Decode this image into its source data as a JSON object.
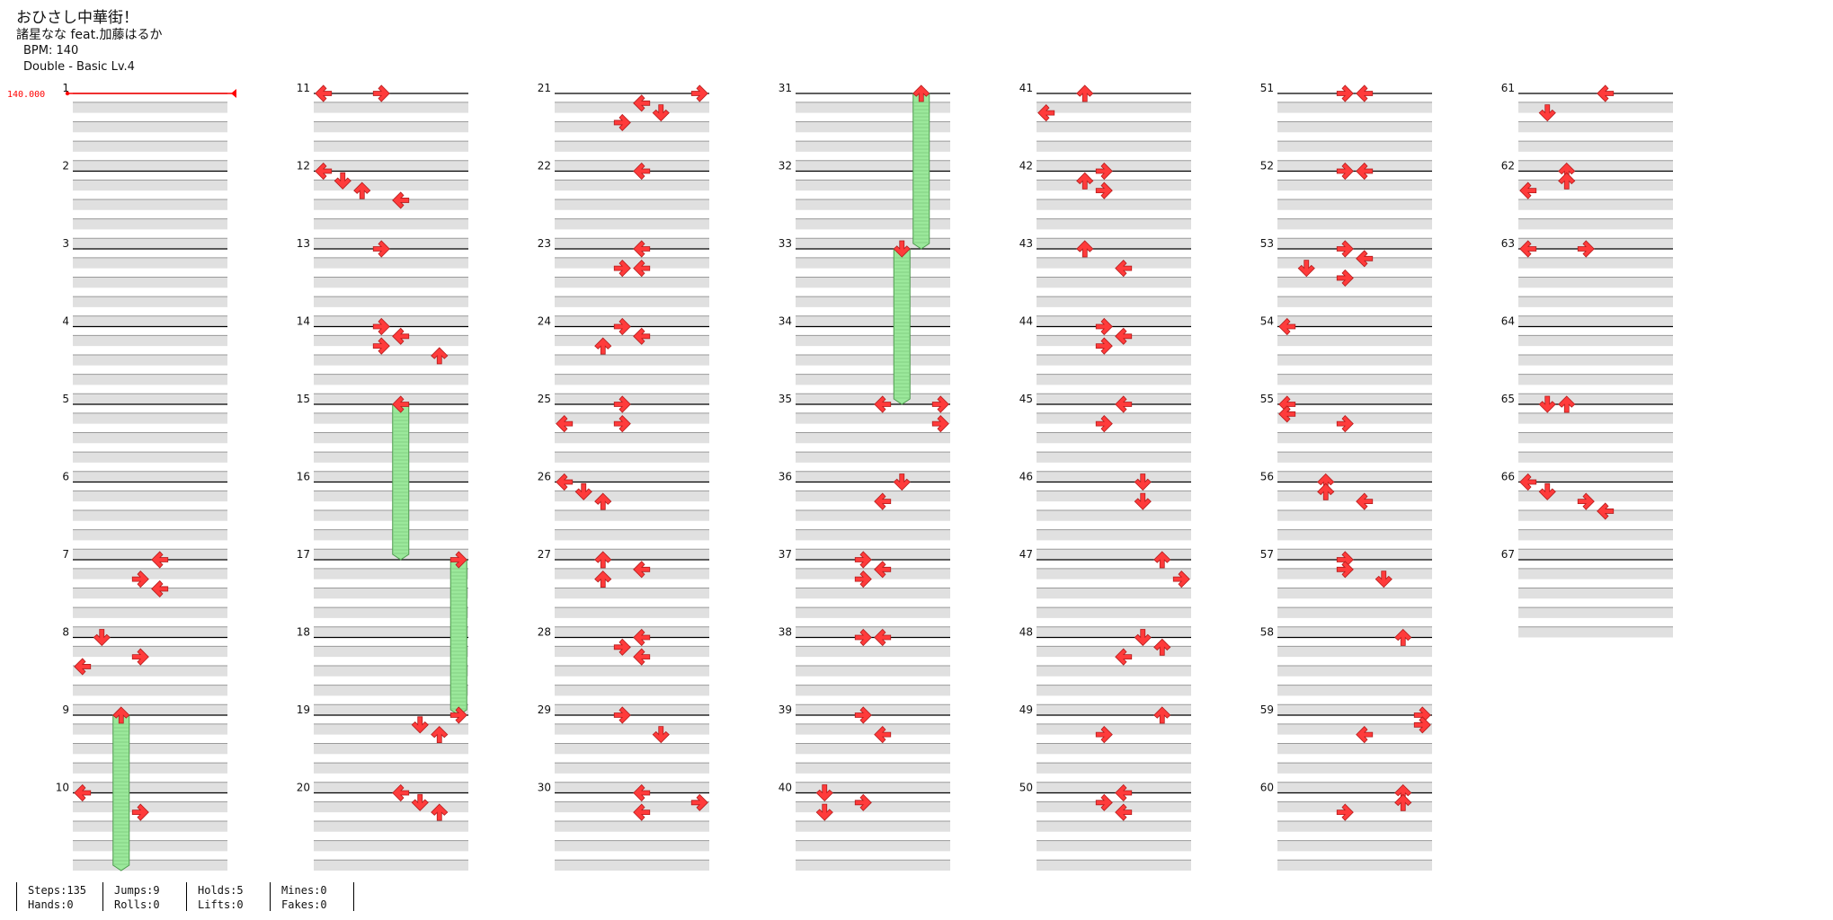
{
  "song": {
    "title": "おひさし中華街！",
    "artist": "諸星なな feat.加藤はるか",
    "bpm_text": "BPM: 140",
    "chart_text": "Double - Basic Lv.4",
    "bpm_marker": "140.000"
  },
  "colors": {
    "arrow": "#ff3b3b",
    "arrow_outline": "#b31b1b",
    "hold": "#9be89b",
    "hold_outline": "#4c9a4c",
    "band": "#e0e0e0",
    "bpm": "#ff0000"
  },
  "stats": [
    {
      "label1": "Steps:",
      "value1": "135",
      "label2": "Hands:",
      "value2": "0"
    },
    {
      "label1": "Jumps:",
      "value1": "9",
      "label2": "Rolls:",
      "value2": "0"
    },
    {
      "label1": "Holds:",
      "value1": "5",
      "label2": "Lifts:",
      "value2": "0"
    },
    {
      "label1": "Mines:",
      "value1": "0",
      "label2": "Fakes:",
      "value2": "0"
    }
  ],
  "chart_data": {
    "type": "step_chart",
    "style": "double",
    "lanes": 8,
    "lane_directions": [
      "left",
      "down",
      "up",
      "right",
      "left",
      "down",
      "up",
      "right"
    ],
    "measures": [
      {
        "n": 1,
        "notes": []
      },
      {
        "n": 2,
        "notes": []
      },
      {
        "n": 3,
        "notes": []
      },
      {
        "n": 4,
        "notes": []
      },
      {
        "n": 5,
        "notes": []
      },
      {
        "n": 6,
        "notes": []
      },
      {
        "n": 7,
        "notes": [
          {
            "lane": 4,
            "beat": 0
          },
          {
            "lane": 3,
            "beat": 1
          },
          {
            "lane": 4,
            "beat": 1.5
          }
        ]
      },
      {
        "n": 8,
        "notes": [
          {
            "lane": 1,
            "beat": 0
          },
          {
            "lane": 3,
            "beat": 1
          },
          {
            "lane": 0,
            "beat": 1.5
          }
        ]
      },
      {
        "n": 9,
        "notes": [
          {
            "lane": 2,
            "beat": 0,
            "hold": 2
          }
        ]
      },
      {
        "n": 10,
        "notes": [
          {
            "lane": 0,
            "beat": 0
          },
          {
            "lane": 3,
            "beat": 1
          }
        ]
      },
      {
        "n": 11,
        "notes": [
          {
            "lane": 0,
            "beat": 0
          },
          {
            "lane": 3,
            "beat": 0
          }
        ]
      },
      {
        "n": 12,
        "notes": [
          {
            "lane": 0,
            "beat": 0
          },
          {
            "lane": 1,
            "beat": 0.5
          },
          {
            "lane": 2,
            "beat": 1
          },
          {
            "lane": 4,
            "beat": 1.5
          }
        ]
      },
      {
        "n": 13,
        "notes": [
          {
            "lane": 3,
            "beat": 0
          }
        ]
      },
      {
        "n": 14,
        "notes": [
          {
            "lane": 3,
            "beat": 0
          },
          {
            "lane": 4,
            "beat": 0.5
          },
          {
            "lane": 3,
            "beat": 1
          },
          {
            "lane": 6,
            "beat": 1.5
          }
        ]
      },
      {
        "n": 15,
        "notes": [
          {
            "lane": 4,
            "beat": 0,
            "hold": 2
          }
        ]
      },
      {
        "n": 16,
        "notes": []
      },
      {
        "n": 17,
        "notes": [
          {
            "lane": 7,
            "beat": 0,
            "hold": 2
          }
        ]
      },
      {
        "n": 18,
        "notes": []
      },
      {
        "n": 19,
        "notes": [
          {
            "lane": 7,
            "beat": 0
          },
          {
            "lane": 5,
            "beat": 0.5
          },
          {
            "lane": 6,
            "beat": 1
          }
        ]
      },
      {
        "n": 20,
        "notes": [
          {
            "lane": 4,
            "beat": 0
          },
          {
            "lane": 5,
            "beat": 0.5
          },
          {
            "lane": 6,
            "beat": 1
          }
        ]
      },
      {
        "n": 21,
        "notes": [
          {
            "lane": 7,
            "beat": 0
          },
          {
            "lane": 4,
            "beat": 0.5
          },
          {
            "lane": 5,
            "beat": 1
          },
          {
            "lane": 3,
            "beat": 1.5
          }
        ]
      },
      {
        "n": 22,
        "notes": [
          {
            "lane": 4,
            "beat": 0
          }
        ]
      },
      {
        "n": 23,
        "notes": [
          {
            "lane": 4,
            "beat": 0
          },
          {
            "lane": 3,
            "beat": 1
          },
          {
            "lane": 4,
            "beat": 1
          }
        ]
      },
      {
        "n": 24,
        "notes": [
          {
            "lane": 3,
            "beat": 0
          },
          {
            "lane": 4,
            "beat": 0.5
          },
          {
            "lane": 2,
            "beat": 1
          }
        ]
      },
      {
        "n": 25,
        "notes": [
          {
            "lane": 3,
            "beat": 0
          },
          {
            "lane": 0,
            "beat": 1
          },
          {
            "lane": 3,
            "beat": 1
          }
        ]
      },
      {
        "n": 26,
        "notes": [
          {
            "lane": 0,
            "beat": 0
          },
          {
            "lane": 1,
            "beat": 0.5
          },
          {
            "lane": 2,
            "beat": 1
          }
        ]
      },
      {
        "n": 27,
        "notes": [
          {
            "lane": 2,
            "beat": 0
          },
          {
            "lane": 4,
            "beat": 0.5
          },
          {
            "lane": 2,
            "beat": 1
          }
        ]
      },
      {
        "n": 28,
        "notes": [
          {
            "lane": 4,
            "beat": 0
          },
          {
            "lane": 3,
            "beat": 0.5
          },
          {
            "lane": 4,
            "beat": 1
          }
        ]
      },
      {
        "n": 29,
        "notes": [
          {
            "lane": 3,
            "beat": 0
          },
          {
            "lane": 5,
            "beat": 1
          }
        ]
      },
      {
        "n": 30,
        "notes": [
          {
            "lane": 4,
            "beat": 0
          },
          {
            "lane": 7,
            "beat": 0.5
          },
          {
            "lane": 4,
            "beat": 1
          }
        ]
      },
      {
        "n": 31,
        "notes": [
          {
            "lane": 6,
            "beat": 0,
            "hold": 2
          }
        ]
      },
      {
        "n": 32,
        "notes": []
      },
      {
        "n": 33,
        "notes": [
          {
            "lane": 5,
            "beat": 0,
            "hold": 2
          }
        ]
      },
      {
        "n": 34,
        "notes": []
      },
      {
        "n": 35,
        "notes": [
          {
            "lane": 4,
            "beat": 0
          },
          {
            "lane": 7,
            "beat": 0
          },
          {
            "lane": 7,
            "beat": 1
          }
        ]
      },
      {
        "n": 36,
        "notes": [
          {
            "lane": 5,
            "beat": 0
          },
          {
            "lane": 4,
            "beat": 1
          }
        ]
      },
      {
        "n": 37,
        "notes": [
          {
            "lane": 3,
            "beat": 0
          },
          {
            "lane": 4,
            "beat": 0.5
          },
          {
            "lane": 3,
            "beat": 1
          }
        ]
      },
      {
        "n": 38,
        "notes": [
          {
            "lane": 3,
            "beat": 0
          },
          {
            "lane": 4,
            "beat": 0
          }
        ]
      },
      {
        "n": 39,
        "notes": [
          {
            "lane": 3,
            "beat": 0
          },
          {
            "lane": 4,
            "beat": 1
          }
        ]
      },
      {
        "n": 40,
        "notes": [
          {
            "lane": 1,
            "beat": 0
          },
          {
            "lane": 3,
            "beat": 0.5
          },
          {
            "lane": 1,
            "beat": 1
          }
        ]
      },
      {
        "n": 41,
        "notes": [
          {
            "lane": 2,
            "beat": 0
          },
          {
            "lane": 0,
            "beat": 1
          }
        ]
      },
      {
        "n": 42,
        "notes": [
          {
            "lane": 3,
            "beat": 0
          },
          {
            "lane": 2,
            "beat": 0.5
          },
          {
            "lane": 3,
            "beat": 1
          }
        ]
      },
      {
        "n": 43,
        "notes": [
          {
            "lane": 2,
            "beat": 0
          },
          {
            "lane": 4,
            "beat": 1
          }
        ]
      },
      {
        "n": 44,
        "notes": [
          {
            "lane": 3,
            "beat": 0
          },
          {
            "lane": 4,
            "beat": 0.5
          },
          {
            "lane": 3,
            "beat": 1
          }
        ]
      },
      {
        "n": 45,
        "notes": [
          {
            "lane": 4,
            "beat": 0
          },
          {
            "lane": 3,
            "beat": 1
          }
        ]
      },
      {
        "n": 46,
        "notes": [
          {
            "lane": 5,
            "beat": 0
          },
          {
            "lane": 5,
            "beat": 1
          }
        ]
      },
      {
        "n": 47,
        "notes": [
          {
            "lane": 6,
            "beat": 0
          },
          {
            "lane": 7,
            "beat": 1
          }
        ]
      },
      {
        "n": 48,
        "notes": [
          {
            "lane": 5,
            "beat": 0
          },
          {
            "lane": 6,
            "beat": 0.5
          },
          {
            "lane": 4,
            "beat": 1
          }
        ]
      },
      {
        "n": 49,
        "notes": [
          {
            "lane": 6,
            "beat": 0
          },
          {
            "lane": 3,
            "beat": 1
          }
        ]
      },
      {
        "n": 50,
        "notes": [
          {
            "lane": 4,
            "beat": 0
          },
          {
            "lane": 3,
            "beat": 0.5
          },
          {
            "lane": 4,
            "beat": 1
          }
        ]
      },
      {
        "n": 51,
        "notes": [
          {
            "lane": 3,
            "beat": 0
          },
          {
            "lane": 4,
            "beat": 0
          }
        ]
      },
      {
        "n": 52,
        "notes": [
          {
            "lane": 3,
            "beat": 0
          },
          {
            "lane": 4,
            "beat": 0
          }
        ]
      },
      {
        "n": 53,
        "notes": [
          {
            "lane": 3,
            "beat": 0
          },
          {
            "lane": 4,
            "beat": 0.5
          },
          {
            "lane": 1,
            "beat": 1
          },
          {
            "lane": 3,
            "beat": 1.5
          }
        ]
      },
      {
        "n": 54,
        "notes": [
          {
            "lane": 0,
            "beat": 0
          }
        ]
      },
      {
        "n": 55,
        "notes": [
          {
            "lane": 0,
            "beat": 0
          },
          {
            "lane": 0,
            "beat": 0.5
          },
          {
            "lane": 3,
            "beat": 1
          }
        ]
      },
      {
        "n": 56,
        "notes": [
          {
            "lane": 2,
            "beat": 0
          },
          {
            "lane": 2,
            "beat": 0.5
          },
          {
            "lane": 4,
            "beat": 1
          }
        ]
      },
      {
        "n": 57,
        "notes": [
          {
            "lane": 3,
            "beat": 0
          },
          {
            "lane": 3,
            "beat": 0.5
          },
          {
            "lane": 5,
            "beat": 1
          }
        ]
      },
      {
        "n": 58,
        "notes": [
          {
            "lane": 6,
            "beat": 0
          }
        ]
      },
      {
        "n": 59,
        "notes": [
          {
            "lane": 7,
            "beat": 0
          },
          {
            "lane": 7,
            "beat": 0.5
          },
          {
            "lane": 4,
            "beat": 1
          }
        ]
      },
      {
        "n": 60,
        "notes": [
          {
            "lane": 6,
            "beat": 0
          },
          {
            "lane": 6,
            "beat": 0.5
          },
          {
            "lane": 3,
            "beat": 1
          }
        ]
      },
      {
        "n": 61,
        "notes": [
          {
            "lane": 4,
            "beat": 0
          },
          {
            "lane": 1,
            "beat": 1
          }
        ]
      },
      {
        "n": 62,
        "notes": [
          {
            "lane": 2,
            "beat": 0
          },
          {
            "lane": 2,
            "beat": 0.5
          },
          {
            "lane": 0,
            "beat": 1
          }
        ]
      },
      {
        "n": 63,
        "notes": [
          {
            "lane": 0,
            "beat": 0
          },
          {
            "lane": 3,
            "beat": 0
          }
        ]
      },
      {
        "n": 64,
        "notes": []
      },
      {
        "n": 65,
        "notes": [
          {
            "lane": 1,
            "beat": 0
          },
          {
            "lane": 2,
            "beat": 0
          }
        ]
      },
      {
        "n": 66,
        "notes": [
          {
            "lane": 0,
            "beat": 0
          },
          {
            "lane": 1,
            "beat": 0.5
          },
          {
            "lane": 3,
            "beat": 1
          },
          {
            "lane": 4,
            "beat": 1.5
          }
        ]
      },
      {
        "n": 67,
        "notes": []
      }
    ]
  }
}
